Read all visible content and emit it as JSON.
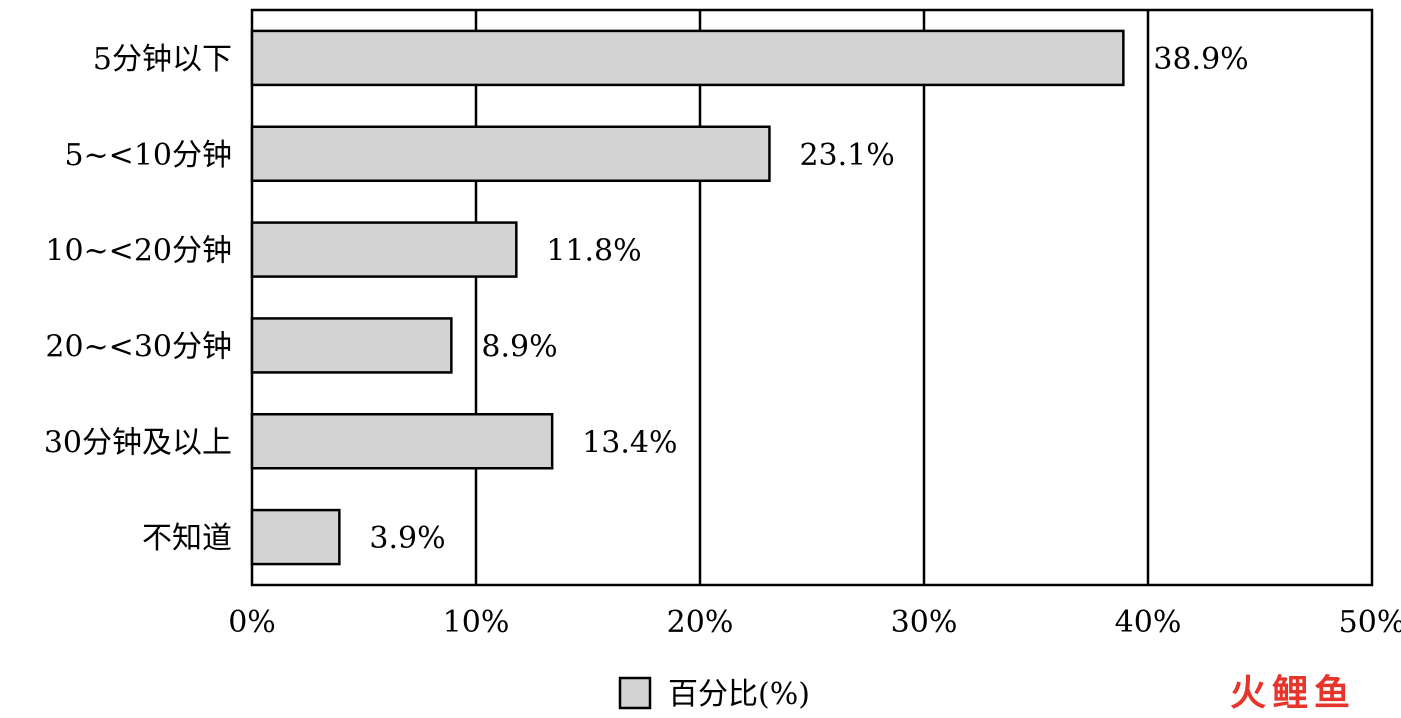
{
  "chart_data": {
    "type": "bar",
    "orientation": "horizontal",
    "categories": [
      "5分钟以下",
      "5~<10分钟",
      "10~<20分钟",
      "20~<30分钟",
      "30分钟及以上",
      "不知道"
    ],
    "series": [
      {
        "name": "百分比(%)",
        "values": [
          38.9,
          23.1,
          11.8,
          8.9,
          13.4,
          3.9
        ]
      }
    ],
    "data_labels": [
      "38.9%",
      "23.1%",
      "11.8%",
      "8.9%",
      "13.4%",
      "3.9%"
    ],
    "x_ticks": [
      0,
      10,
      20,
      30,
      40,
      50
    ],
    "x_tick_labels": [
      "0%",
      "10%",
      "20%",
      "30%",
      "40%",
      "50%"
    ],
    "xlim": [
      0,
      50
    ],
    "title": "",
    "xlabel": "",
    "ylabel": "",
    "grid": "vertical",
    "legend_position": "bottom",
    "bar_color": "#d3d3d3",
    "bar_edge_color": "#000000"
  },
  "watermark": {
    "text_1": "火",
    "text_2": "鲤",
    "text_3": "鱼",
    "color_1": "#e8352b",
    "color_2": "#e8352b",
    "color_3": "#e8352b"
  }
}
